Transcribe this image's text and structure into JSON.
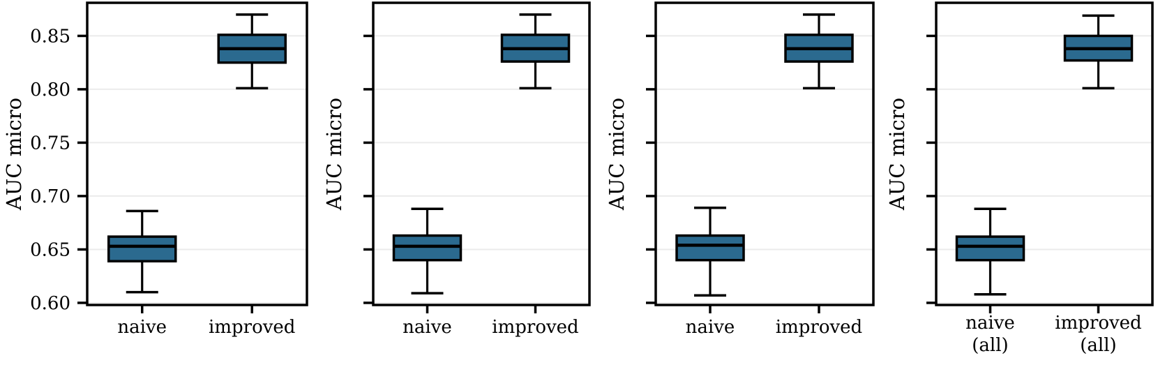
{
  "figure": {
    "description": "Four box-plot panels comparing naive vs improved classifiers on AUC micro"
  },
  "colors": {
    "box_fill": "#2b6a8f",
    "foreground": "#000000",
    "grid": "#ebebeb",
    "background": "#ffffff"
  },
  "chart_data": [
    {
      "type": "box",
      "title": "",
      "xlabel": "",
      "ylabel": "AUC micro",
      "ylim": [
        0.598,
        0.881
      ],
      "yticks": [
        0.6,
        0.65,
        0.7,
        0.75,
        0.8,
        0.85
      ],
      "ytick_labels": [
        "0.60",
        "0.65",
        "0.70",
        "0.75",
        "0.80",
        "0.85"
      ],
      "show_ytick_labels": true,
      "grid": true,
      "legend": false,
      "categories": [
        "naive",
        "improved"
      ],
      "series": [
        {
          "category": "naive",
          "label_lines": [
            "naive"
          ],
          "whisker_low": 0.61,
          "q1": 0.639,
          "median": 0.653,
          "q3": 0.662,
          "whisker_high": 0.686
        },
        {
          "category": "improved",
          "label_lines": [
            "improved"
          ],
          "whisker_low": 0.801,
          "q1": 0.825,
          "median": 0.838,
          "q3": 0.851,
          "whisker_high": 0.87
        }
      ]
    },
    {
      "type": "box",
      "title": "",
      "xlabel": "",
      "ylabel": "AUC micro",
      "ylim": [
        0.598,
        0.881
      ],
      "yticks": [
        0.6,
        0.65,
        0.7,
        0.75,
        0.8,
        0.85
      ],
      "ytick_labels": [
        "",
        "",
        "",
        "",
        "",
        ""
      ],
      "show_ytick_labels": false,
      "grid": true,
      "legend": false,
      "categories": [
        "naive",
        "improved"
      ],
      "series": [
        {
          "category": "naive",
          "label_lines": [
            "naive"
          ],
          "whisker_low": 0.609,
          "q1": 0.64,
          "median": 0.653,
          "q3": 0.663,
          "whisker_high": 0.688
        },
        {
          "category": "improved",
          "label_lines": [
            "improved"
          ],
          "whisker_low": 0.801,
          "q1": 0.826,
          "median": 0.838,
          "q3": 0.851,
          "whisker_high": 0.87
        }
      ]
    },
    {
      "type": "box",
      "title": "",
      "xlabel": "",
      "ylabel": "AUC micro",
      "ylim": [
        0.598,
        0.881
      ],
      "yticks": [
        0.6,
        0.65,
        0.7,
        0.75,
        0.8,
        0.85
      ],
      "ytick_labels": [
        "",
        "",
        "",
        "",
        "",
        ""
      ],
      "show_ytick_labels": false,
      "grid": true,
      "legend": false,
      "categories": [
        "naive",
        "improved"
      ],
      "series": [
        {
          "category": "naive",
          "label_lines": [
            "naive"
          ],
          "whisker_low": 0.607,
          "q1": 0.64,
          "median": 0.654,
          "q3": 0.663,
          "whisker_high": 0.689
        },
        {
          "category": "improved",
          "label_lines": [
            "improved"
          ],
          "whisker_low": 0.801,
          "q1": 0.826,
          "median": 0.838,
          "q3": 0.851,
          "whisker_high": 0.87
        }
      ]
    },
    {
      "type": "box",
      "title": "",
      "xlabel": "",
      "ylabel": "AUC micro",
      "ylim": [
        0.598,
        0.881
      ],
      "yticks": [
        0.6,
        0.65,
        0.7,
        0.75,
        0.8,
        0.85
      ],
      "ytick_labels": [
        "",
        "",
        "",
        "",
        "",
        ""
      ],
      "show_ytick_labels": false,
      "grid": true,
      "legend": false,
      "categories": [
        "naive (all)",
        "improved (all)"
      ],
      "series": [
        {
          "category": "naive (all)",
          "label_lines": [
            "naive",
            "(all)"
          ],
          "whisker_low": 0.608,
          "q1": 0.64,
          "median": 0.653,
          "q3": 0.662,
          "whisker_high": 0.688
        },
        {
          "category": "improved (all)",
          "label_lines": [
            "improved",
            "(all)"
          ],
          "whisker_low": 0.801,
          "q1": 0.827,
          "median": 0.838,
          "q3": 0.85,
          "whisker_high": 0.869
        }
      ]
    }
  ]
}
